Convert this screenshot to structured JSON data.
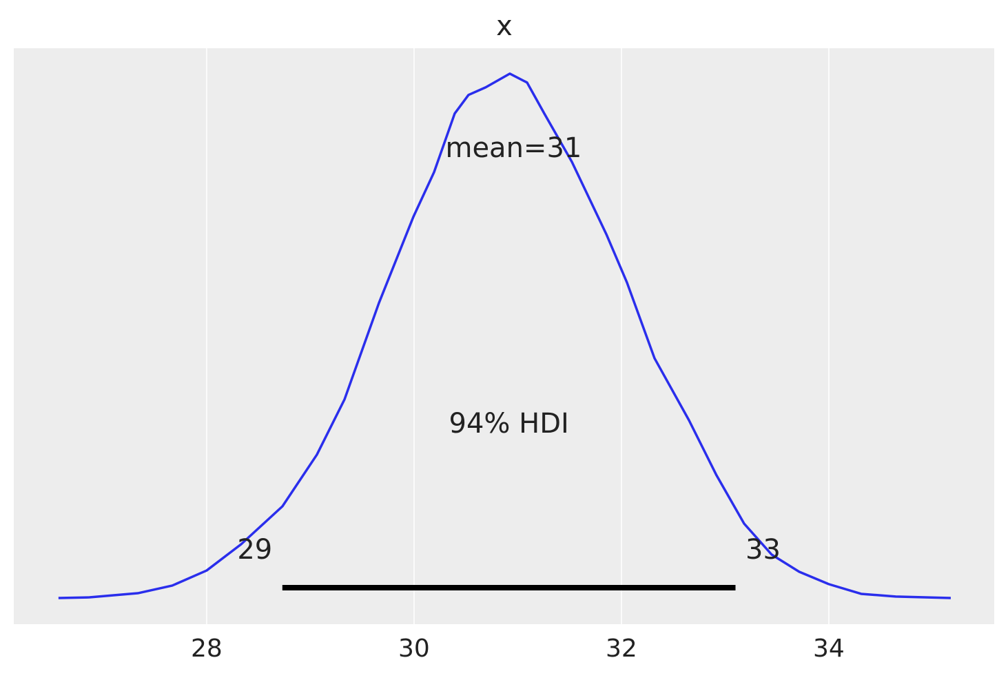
{
  "chart_data": {
    "type": "line",
    "title": "x",
    "series": [
      {
        "color": "#2a2eec",
        "x": [
          26.571,
          26.87,
          27.336,
          27.668,
          28.0,
          28.332,
          28.731,
          29.063,
          29.329,
          29.661,
          29.993,
          30.193,
          30.392,
          30.525,
          30.691,
          30.924,
          31.09,
          31.256,
          31.522,
          31.854,
          32.053,
          32.319,
          32.651,
          32.917,
          33.183,
          33.449,
          33.714,
          34.0,
          34.312,
          34.645,
          35.176
        ],
        "values": [
          0,
          0.0004,
          0.003,
          0.0078,
          0.0173,
          0.0338,
          0.0577,
          0.0902,
          0.1249,
          0.1856,
          0.2398,
          0.268,
          0.3049,
          0.3166,
          0.3214,
          0.33,
          0.3244,
          0.3049,
          0.2745,
          0.229,
          0.1986,
          0.1509,
          0.1119,
          0.0772,
          0.0468,
          0.0273,
          0.0165,
          0.0087,
          0.0026,
          0.0009,
          0
        ]
      }
    ],
    "mean": {
      "value": 30.96,
      "label": "mean=31"
    },
    "hdi": {
      "label": "94% HDI",
      "values": [
        28.73,
        33.1
      ],
      "value_labels": [
        "29",
        "33"
      ],
      "color": "#000000"
    },
    "xlim": [
      26.14,
      35.595
    ],
    "ylim": [
      -0.0165,
      0.346
    ],
    "xticks": [
      28,
      30,
      32,
      34
    ],
    "grid": true
  }
}
